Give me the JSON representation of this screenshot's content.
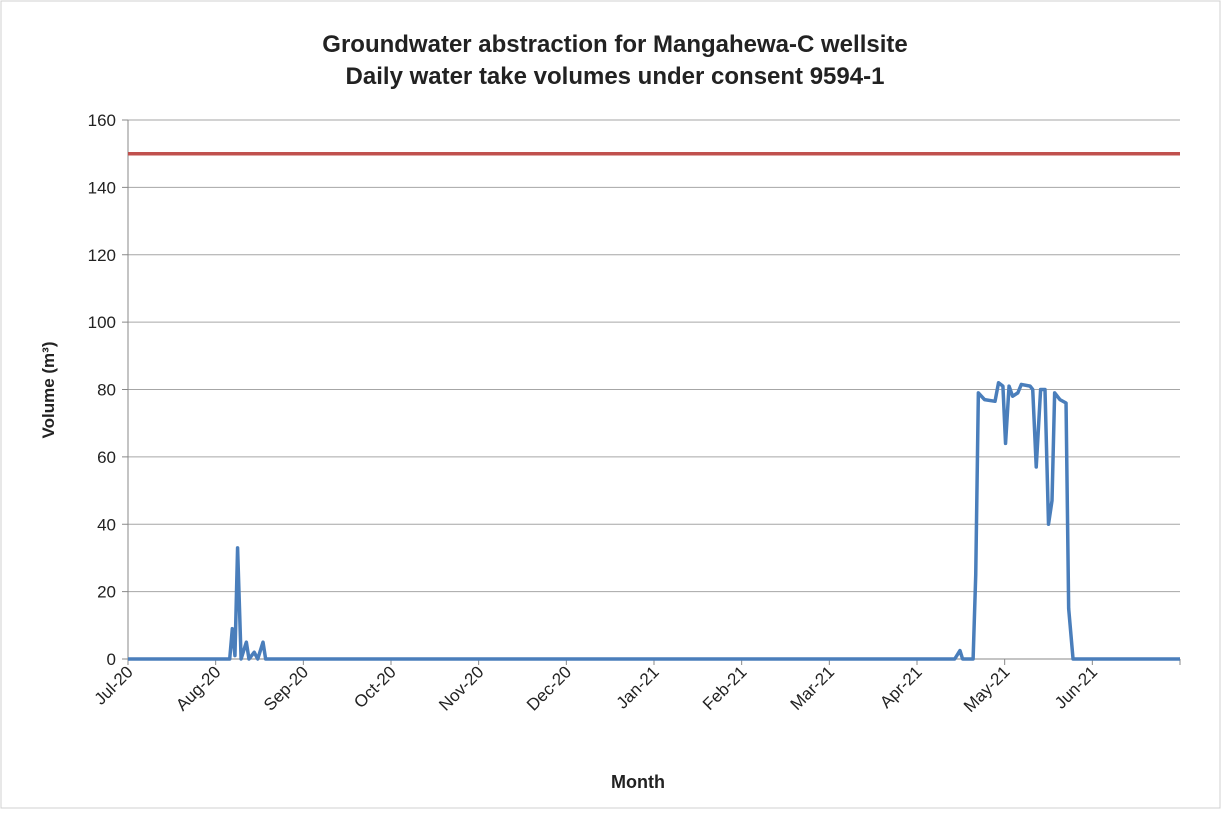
{
  "chart_data": {
    "type": "line",
    "title": [
      "Groundwater abstraction for Mangahewa-C wellsite",
      "Daily water take volumes under consent 9594-1"
    ],
    "x_label": "Month",
    "y_label": "Volume (m³)",
    "xlim": [
      0,
      12
    ],
    "xticks": [
      {
        "value": 0,
        "label": "Jul-20"
      },
      {
        "value": 1,
        "label": "Aug-20"
      },
      {
        "value": 2,
        "label": "Sep-20"
      },
      {
        "value": 3,
        "label": "Oct-20"
      },
      {
        "value": 4,
        "label": "Nov-20"
      },
      {
        "value": 5,
        "label": "Dec-20"
      },
      {
        "value": 6,
        "label": "Jan-21"
      },
      {
        "value": 7,
        "label": "Feb-21"
      },
      {
        "value": 8,
        "label": "Mar-21"
      },
      {
        "value": 9,
        "label": "Apr-21"
      },
      {
        "value": 10,
        "label": "May-21"
      },
      {
        "value": 11,
        "label": "Jun-21"
      },
      {
        "value": 12,
        "label": ""
      }
    ],
    "ylim": [
      0,
      160
    ],
    "yticks": [
      0,
      20,
      40,
      60,
      80,
      100,
      120,
      140,
      160
    ],
    "grid": true,
    "series": [
      {
        "color": "#c0504d",
        "x": [
          0,
          12
        ],
        "values": [
          150,
          150
        ]
      },
      {
        "color": "#4a7ebb",
        "x": [
          0,
          1.16,
          1.19,
          1.22,
          1.25,
          1.29,
          1.35,
          1.38,
          1.44,
          1.48,
          1.54,
          1.57,
          9.43,
          9.49,
          9.52,
          9.64,
          9.67,
          9.7,
          9.77,
          9.89,
          9.93,
          9.98,
          10.01,
          10.05,
          10.09,
          10.15,
          10.19,
          10.29,
          10.32,
          10.36,
          10.41,
          10.46,
          10.5,
          10.54,
          10.57,
          10.63,
          10.7,
          10.73,
          10.78,
          12
        ],
        "values": [
          0,
          0,
          9,
          1,
          33,
          0,
          5,
          0,
          2,
          0,
          5,
          0,
          0,
          2.5,
          0,
          0,
          25,
          79,
          77,
          76.5,
          82,
          81,
          64,
          81,
          78,
          79,
          81.5,
          81,
          80,
          57,
          80,
          80,
          40,
          47,
          79,
          77,
          76,
          15,
          0,
          0
        ]
      }
    ]
  }
}
